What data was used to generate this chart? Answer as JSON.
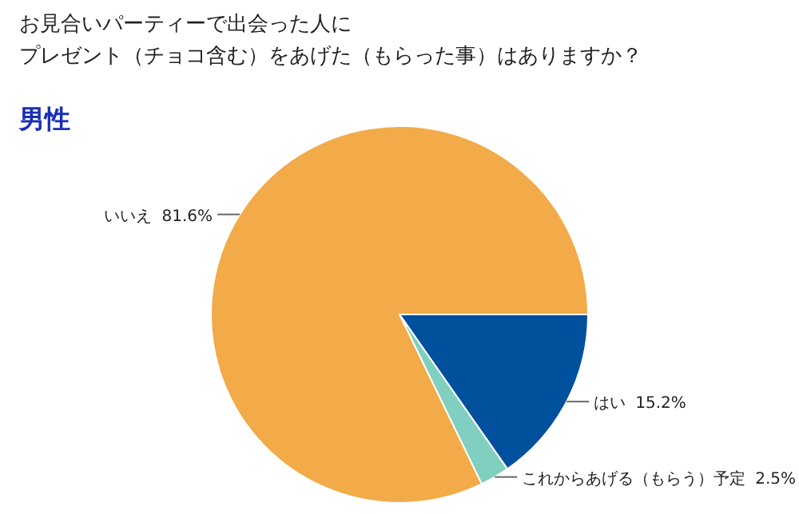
{
  "chart_data": {
    "type": "pie",
    "title": "お見合いパーティーで出会った人にプレゼント（チョコ含む）をあげた（もらった事）はありますか？",
    "subtitle": "男性",
    "categories": [
      "はい",
      "これからあげる（もらう）予定",
      "いいえ"
    ],
    "values": [
      15.2,
      2.5,
      81.6
    ],
    "value_labels": [
      "15.2%",
      "2.5%",
      "81.6%"
    ],
    "colors": [
      "#00509e",
      "#80cfc0",
      "#f2ab48"
    ]
  }
}
